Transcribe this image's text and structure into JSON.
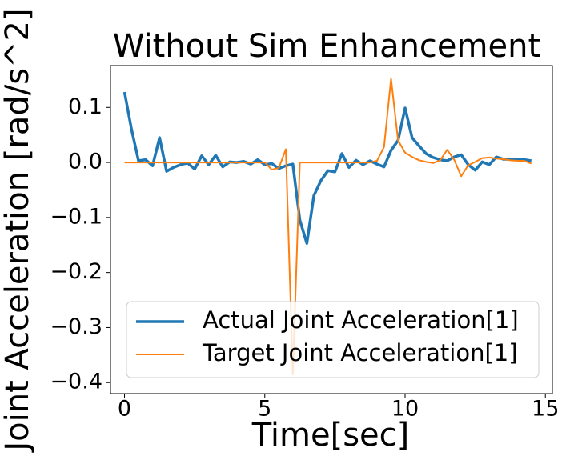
{
  "chart_data": {
    "type": "line",
    "title": "Without Sim Enhancement",
    "x_label": "Time[sec]",
    "y_label": "Joint Acceleration [rad/s^2]",
    "x": [
      0,
      0.25,
      0.5,
      0.75,
      1,
      1.25,
      1.5,
      1.75,
      2,
      2.25,
      2.5,
      2.75,
      3,
      3.25,
      3.5,
      3.75,
      4,
      4.25,
      4.5,
      4.75,
      5,
      5.25,
      5.5,
      5.75,
      6,
      6.25,
      6.5,
      6.75,
      7,
      7.25,
      7.5,
      7.75,
      8,
      8.25,
      8.5,
      8.75,
      9,
      9.25,
      9.5,
      9.75,
      10,
      10.25,
      10.5,
      10.75,
      11,
      11.25,
      11.5,
      11.75,
      12,
      12.25,
      12.5,
      12.75,
      13,
      13.25,
      13.5,
      13.75,
      14,
      14.25,
      14.5
    ],
    "series": [
      {
        "name": "Actual Joint Acceleration[1]",
        "color": "#1f77b4",
        "values": [
          0.128,
          0.06,
          0.003,
          0.005,
          -0.006,
          0.045,
          -0.016,
          -0.009,
          -0.004,
          -0.001,
          -0.012,
          0.012,
          -0.004,
          0.013,
          -0.008,
          0.001,
          0,
          0.002,
          -0.003,
          0.005,
          -0.004,
          -0.002,
          -0.011,
          -0.006,
          -0.003,
          -0.105,
          -0.147,
          -0.06,
          -0.033,
          -0.015,
          -0.017,
          0.016,
          -0.009,
          0.004,
          -0.004,
          0.003,
          -0.003,
          -0.008,
          0.022,
          0.04,
          0.099,
          0.045,
          0.03,
          0.016,
          0.009,
          0.005,
          0.003,
          0.01,
          0.014,
          -0.004,
          -0.014,
          0.001,
          -0.004,
          0.01,
          0.006,
          0.006,
          0.006,
          0.005,
          0.003
        ]
      },
      {
        "name": "Target Joint Acceleration[1]",
        "color": "#ff7f0e",
        "values": [
          0,
          0,
          0,
          0,
          0,
          0,
          0,
          0,
          0,
          0,
          0,
          0,
          0,
          0,
          0,
          0,
          0,
          0,
          0,
          0,
          0,
          -0.013,
          -0.01,
          0.024,
          -0.385,
          0,
          0,
          0,
          0,
          0,
          0,
          0,
          0,
          0,
          0,
          0,
          0.003,
          0.028,
          0.152,
          0.04,
          0.018,
          0.01,
          0.004,
          0.001,
          -0.001,
          0.004,
          0.023,
          0.005,
          -0.025,
          -0.005,
          0.001,
          0.008,
          0.009,
          0.007,
          0.006,
          0.004,
          0.003,
          0.003,
          -0.002
        ]
      }
    ],
    "xlim": [
      -0.5,
      15.25
    ],
    "xticks": [
      0,
      5,
      10,
      15
    ],
    "ylim": [
      -0.42,
      0.176
    ],
    "yticks": [
      0.1,
      {
        "value": 0,
        "label": "0.0"
      },
      {
        "value": -0.1,
        "label": "−0.1"
      },
      {
        "value": -0.2,
        "label": "−0.2"
      },
      {
        "value": -0.3,
        "label": "−0.3"
      },
      {
        "value": -0.4,
        "label": "−0.4"
      }
    ],
    "grid": false,
    "legend": "lower right"
  }
}
